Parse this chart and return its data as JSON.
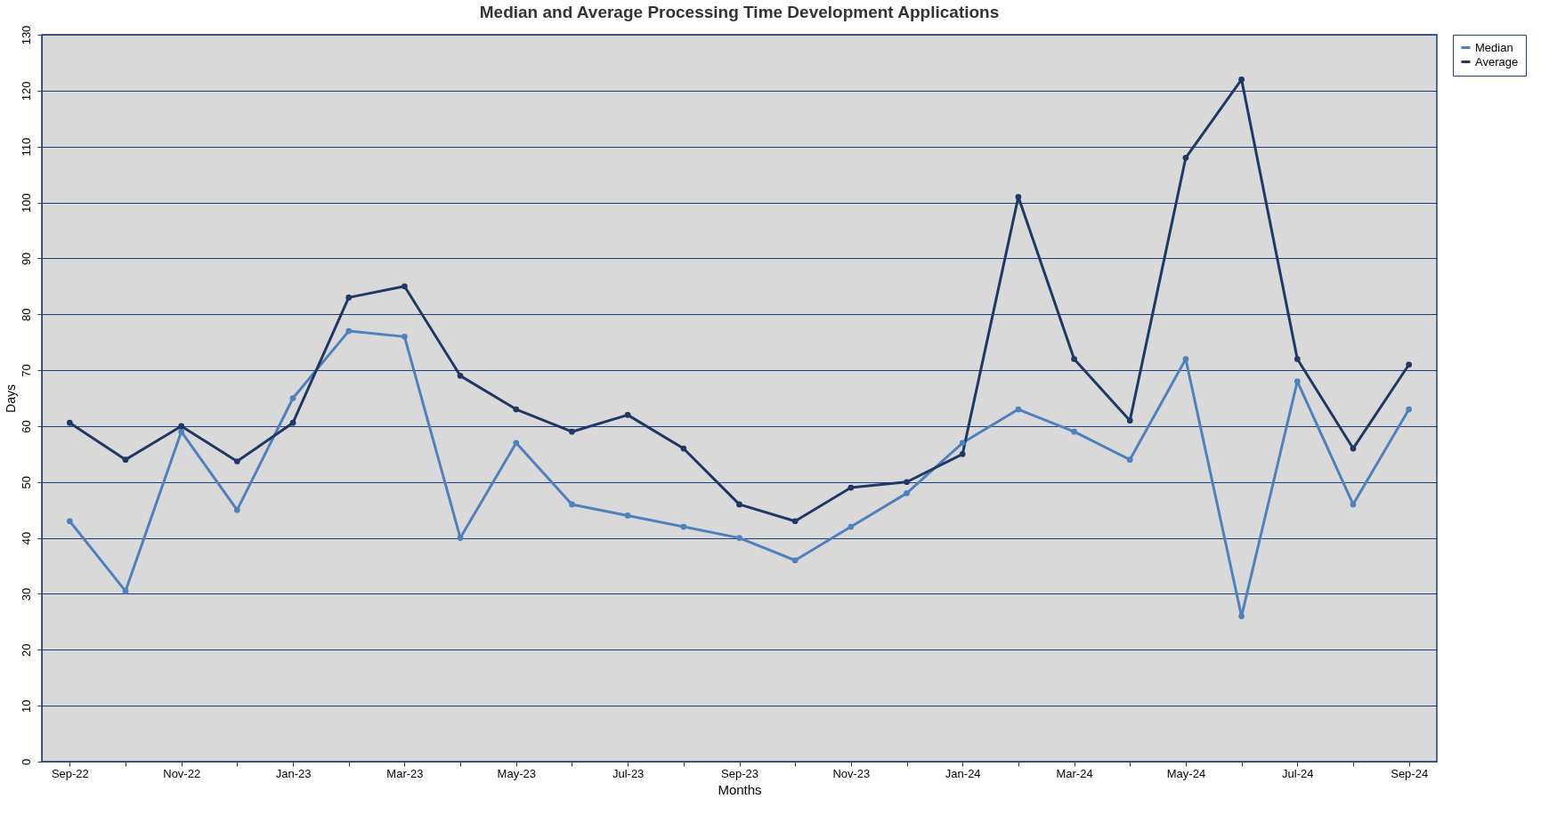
{
  "chart_data": {
    "type": "line",
    "title": "Median and Average Processing Time Development Applications",
    "xlabel": "Months",
    "ylabel": "Days",
    "categories": [
      "Sep-22",
      null,
      "Nov-22",
      null,
      "Jan-23",
      null,
      "Mar-23",
      null,
      "May-23",
      null,
      "Jul-23",
      null,
      "Sep-23",
      null,
      "Nov-23",
      null,
      "Jan-24",
      null,
      "Mar-24",
      null,
      "May-24",
      null,
      "Jul-24",
      null,
      "Sep-24"
    ],
    "series": [
      {
        "name": "Median",
        "color": "#4f81bd",
        "values": [
          43,
          30.5,
          59,
          45,
          65,
          77,
          76,
          40,
          57,
          46,
          44,
          42,
          40,
          36,
          42,
          48,
          57,
          63,
          59,
          54,
          72,
          26,
          68,
          46,
          63
        ]
      },
      {
        "name": "Average",
        "color": "#1f3864",
        "values": [
          60.6,
          54,
          60,
          53.7,
          60.6,
          83,
          85,
          69,
          63,
          59,
          62,
          56,
          46,
          43,
          49,
          50,
          55,
          101,
          72,
          61,
          108,
          122,
          72,
          56,
          71
        ]
      }
    ],
    "ylim": [
      0,
      130
    ],
    "yticks": [
      0,
      10,
      20,
      30,
      40,
      50,
      60,
      70,
      80,
      90,
      100,
      110,
      120,
      130
    ],
    "grid": "y",
    "legend": "right",
    "marker": "circle",
    "line_style": "solid"
  }
}
